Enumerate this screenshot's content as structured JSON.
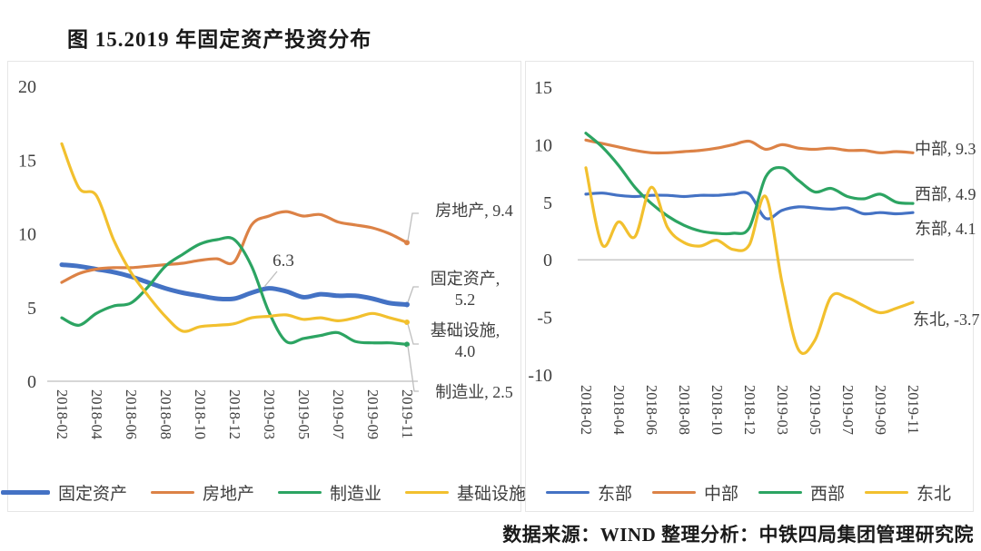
{
  "title": "图 15.2019 年固定资产投资分布",
  "source": "数据来源：WIND 整理分析：中铁四局集团管理研究院",
  "colors": {
    "blue": "#4472C4",
    "orange": "#DC8246",
    "green": "#2CA462",
    "yellow": "#F2C02E",
    "axis_gray": "#C9C9C9",
    "leader_gray": "#BDBDBD",
    "text_gray": "#3F3F3F"
  },
  "chart_data": [
    {
      "type": "line",
      "panel": "left",
      "x": [
        "2018-02",
        "2018-03",
        "2018-04",
        "2018-05",
        "2018-06",
        "2018-07",
        "2018-08",
        "2018-09",
        "2018-10",
        "2018-11",
        "2018-12",
        "2019-02",
        "2019-03",
        "2019-04",
        "2019-05",
        "2019-06",
        "2019-07",
        "2019-08",
        "2019-09",
        "2019-10",
        "2019-11"
      ],
      "x_tick_labels": [
        "2018-02",
        "2018-04",
        "2018-06",
        "2018-08",
        "2018-10",
        "2018-12",
        "2019-03",
        "2019-05",
        "2019-07",
        "2019-09",
        "2019-11"
      ],
      "ylim": [
        0,
        20
      ],
      "yticks": [
        0,
        5,
        10,
        15,
        20
      ],
      "grid": false,
      "legend_position": "bottom",
      "series": [
        {
          "id": "fixed-assets",
          "name": "固定资产",
          "color": "#4472C4",
          "thick": true,
          "values": [
            7.9,
            7.8,
            7.6,
            7.4,
            7.1,
            6.7,
            6.3,
            6.0,
            5.8,
            5.6,
            5.6,
            6.0,
            6.3,
            6.1,
            5.7,
            5.9,
            5.8,
            5.8,
            5.6,
            5.3,
            5.2
          ]
        },
        {
          "id": "real-estate",
          "name": "房地产",
          "color": "#DC8246",
          "thick": false,
          "values": [
            6.7,
            7.3,
            7.6,
            7.7,
            7.7,
            7.8,
            7.9,
            8.0,
            8.2,
            8.3,
            8.1,
            10.6,
            11.2,
            11.5,
            11.2,
            11.3,
            10.8,
            10.6,
            10.4,
            10.0,
            9.4
          ]
        },
        {
          "id": "manufacturing",
          "name": "制造业",
          "color": "#2CA462",
          "thick": false,
          "values": [
            4.3,
            3.8,
            4.6,
            5.1,
            5.3,
            6.4,
            7.8,
            8.6,
            9.3,
            9.6,
            9.6,
            7.8,
            4.7,
            2.7,
            2.9,
            3.1,
            3.3,
            2.7,
            2.6,
            2.6,
            2.5
          ]
        },
        {
          "id": "infrastructure",
          "name": "基础设施",
          "color": "#F2C02E",
          "thick": false,
          "values": [
            16.1,
            13.1,
            12.6,
            9.6,
            7.4,
            5.8,
            4.4,
            3.4,
            3.7,
            3.8,
            3.9,
            4.3,
            4.4,
            4.5,
            4.2,
            4.3,
            4.1,
            4.3,
            4.6,
            4.3,
            4.0
          ]
        }
      ],
      "annotations": [
        {
          "id": "real-estate-label",
          "text": "房地产, 9.4"
        },
        {
          "id": "point-label",
          "text": "6.3"
        },
        {
          "id": "fixed-assets-label",
          "text": "固定资产, 5.2"
        },
        {
          "id": "infrastructure-label",
          "text": "基础设施, 4.0"
        },
        {
          "id": "manufacturing-label",
          "text": "制造业, 2.5"
        }
      ]
    },
    {
      "type": "line",
      "panel": "right",
      "x": [
        "2018-02",
        "2018-03",
        "2018-04",
        "2018-05",
        "2018-06",
        "2018-07",
        "2018-08",
        "2018-09",
        "2018-10",
        "2018-11",
        "2018-12",
        "2019-02",
        "2019-03",
        "2019-04",
        "2019-05",
        "2019-06",
        "2019-07",
        "2019-08",
        "2019-09",
        "2019-10",
        "2019-11"
      ],
      "x_tick_labels": [
        "2018-02",
        "2018-04",
        "2018-06",
        "2018-08",
        "2018-10",
        "2018-12",
        "2019-03",
        "2019-05",
        "2019-07",
        "2019-09",
        "2019-11"
      ],
      "ylim": [
        -10,
        15
      ],
      "yticks": [
        -10,
        -5,
        0,
        5,
        10,
        15
      ],
      "grid": false,
      "legend_position": "bottom",
      "series": [
        {
          "id": "east",
          "name": "东部",
          "color": "#4472C4",
          "thick": false,
          "values": [
            5.7,
            5.8,
            5.6,
            5.5,
            5.6,
            5.6,
            5.5,
            5.6,
            5.6,
            5.7,
            5.7,
            3.6,
            4.3,
            4.6,
            4.5,
            4.4,
            4.5,
            4.0,
            4.1,
            4.0,
            4.1
          ]
        },
        {
          "id": "central",
          "name": "中部",
          "color": "#DC8246",
          "thick": false,
          "values": [
            10.4,
            10.1,
            9.8,
            9.5,
            9.3,
            9.3,
            9.4,
            9.5,
            9.7,
            10.0,
            10.3,
            9.6,
            10.0,
            9.7,
            9.6,
            9.7,
            9.5,
            9.5,
            9.3,
            9.4,
            9.3
          ]
        },
        {
          "id": "west",
          "name": "西部",
          "color": "#2CA462",
          "thick": false,
          "values": [
            11.0,
            9.8,
            8.2,
            6.3,
            4.9,
            3.8,
            3.0,
            2.5,
            2.3,
            2.3,
            2.8,
            7.2,
            8.0,
            6.9,
            5.9,
            6.2,
            5.5,
            5.3,
            5.7,
            5.0,
            4.9
          ]
        },
        {
          "id": "northeast",
          "name": "东北",
          "color": "#F2C02E",
          "thick": false,
          "values": [
            8.0,
            1.3,
            3.3,
            2.0,
            6.3,
            2.8,
            1.5,
            1.2,
            1.7,
            0.9,
            1.3,
            5.5,
            -2.0,
            -7.8,
            -7.0,
            -3.2,
            -3.3,
            -4.0,
            -4.6,
            -4.2,
            -3.7
          ]
        }
      ],
      "annotations": [
        {
          "id": "central-label",
          "text": "中部, 9.3"
        },
        {
          "id": "west-label",
          "text": "西部, 4.9"
        },
        {
          "id": "east-label",
          "text": "东部, 4.1"
        },
        {
          "id": "northeast-label",
          "text": "东北, -3.7"
        }
      ]
    }
  ]
}
